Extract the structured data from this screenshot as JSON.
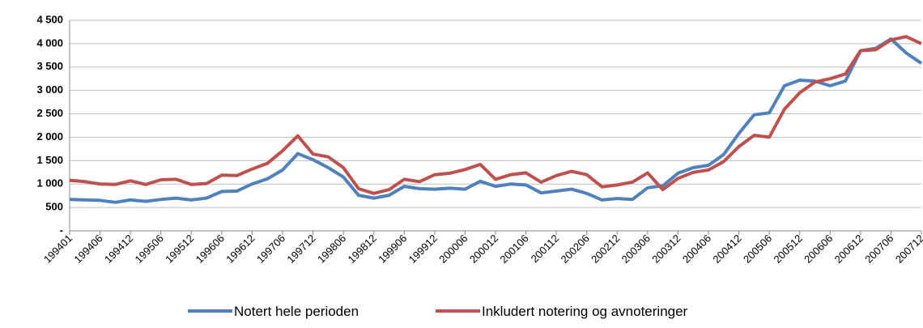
{
  "chart_data": {
    "type": "line",
    "categories": [
      "199401",
      null,
      "199406",
      null,
      "199412",
      null,
      "199506",
      null,
      "199512",
      null,
      "199606",
      null,
      "199612",
      null,
      "199706",
      null,
      "199712",
      null,
      "199806",
      null,
      "199812",
      null,
      "199906",
      null,
      "199912",
      null,
      "200006",
      null,
      "200012",
      null,
      "200106",
      null,
      "200112",
      null,
      "200206",
      null,
      "200212",
      null,
      "200306",
      null,
      "200312",
      null,
      "200406",
      null,
      "200412",
      null,
      "200506",
      null,
      "200512",
      null,
      "200606",
      null,
      "200612",
      null,
      "200706",
      null,
      "200712"
    ],
    "series": [
      {
        "name": "Notert hele perioden",
        "color": "#4f81bd",
        "values": [
          670,
          660,
          650,
          610,
          660,
          630,
          670,
          700,
          660,
          700,
          840,
          850,
          1000,
          1110,
          1300,
          1650,
          1520,
          1350,
          1150,
          760,
          700,
          760,
          950,
          900,
          890,
          910,
          890,
          1060,
          950,
          1000,
          980,
          810,
          850,
          890,
          800,
          660,
          690,
          670,
          920,
          960,
          1230,
          1350,
          1400,
          1630,
          2080,
          2480,
          2520,
          3100,
          3220,
          3200,
          3100,
          3200,
          3850,
          3900,
          4100,
          3800,
          3580
        ]
      },
      {
        "name": "Inkludert notering og avnoteringer",
        "color": "#c0504d",
        "values": [
          1080,
          1050,
          1000,
          990,
          1070,
          990,
          1090,
          1100,
          990,
          1010,
          1190,
          1180,
          1320,
          1440,
          1710,
          2030,
          1640,
          1580,
          1350,
          900,
          800,
          880,
          1100,
          1050,
          1200,
          1230,
          1310,
          1420,
          1100,
          1200,
          1240,
          1040,
          1180,
          1270,
          1200,
          940,
          980,
          1040,
          1240,
          880,
          1120,
          1250,
          1300,
          1480,
          1800,
          2040,
          2000,
          2600,
          2950,
          3180,
          3250,
          3350,
          3850,
          3870,
          4080,
          4150,
          4000
        ]
      }
    ],
    "ylim": [
      0,
      4500
    ],
    "yticks": [
      {
        "value": 0,
        "label": "-"
      },
      500,
      {
        "value": 1000,
        "label": "1 000"
      },
      {
        "value": 1500,
        "label": "1 500"
      },
      {
        "value": 2000,
        "label": "2 000"
      },
      {
        "value": 2500,
        "label": "2 500"
      },
      {
        "value": 3000,
        "label": "3 000"
      },
      {
        "value": 3500,
        "label": "3 500"
      },
      {
        "value": 4000,
        "label": "4 000"
      },
      {
        "value": 4500,
        "label": "4 500"
      }
    ],
    "grid": true,
    "legend": "bottom"
  }
}
